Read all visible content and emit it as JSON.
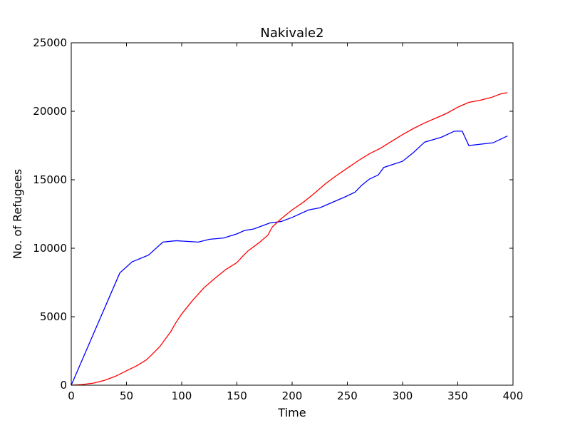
{
  "chart_data": {
    "type": "line",
    "title": "Nakivale2",
    "xlabel": "Time",
    "ylabel": "No. of Refugees",
    "xlim": [
      0,
      400
    ],
    "ylim": [
      0,
      25000
    ],
    "xticks": [
      0,
      50,
      100,
      150,
      200,
      250,
      300,
      350,
      400
    ],
    "yticks": [
      0,
      5000,
      10000,
      15000,
      20000,
      25000
    ],
    "grid": false,
    "legend": null,
    "series": [
      {
        "color": "#0000ff",
        "x": [
          0,
          44,
          55,
          70,
          83,
          95,
          115,
          125,
          138,
          150,
          157,
          165,
          180,
          190,
          200,
          215,
          225,
          235,
          248,
          257,
          263,
          270,
          278,
          283,
          300,
          310,
          320,
          335,
          347,
          354,
          360,
          382,
          395
        ],
        "y": [
          0,
          8200,
          9000,
          9500,
          10450,
          10550,
          10450,
          10650,
          10750,
          11050,
          11300,
          11400,
          11850,
          11950,
          12250,
          12800,
          12950,
          13300,
          13750,
          14100,
          14600,
          15050,
          15350,
          15900,
          16350,
          17000,
          17750,
          18100,
          18550,
          18550,
          17500,
          17700,
          18200
        ]
      },
      {
        "color": "#ff0000",
        "x": [
          0,
          10,
          20,
          30,
          40,
          50,
          60,
          68,
          72,
          80,
          90,
          95,
          100,
          110,
          120,
          130,
          140,
          150,
          155,
          160,
          170,
          178,
          182,
          190,
          200,
          210,
          220,
          230,
          240,
          250,
          260,
          270,
          280,
          290,
          300,
          310,
          320,
          330,
          340,
          350,
          360,
          370,
          380,
          390,
          395
        ],
        "y": [
          0,
          50,
          150,
          350,
          650,
          1050,
          1450,
          1850,
          2150,
          2800,
          3900,
          4600,
          5200,
          6200,
          7100,
          7800,
          8450,
          8950,
          9400,
          9800,
          10400,
          10950,
          11550,
          12150,
          12800,
          13350,
          14000,
          14700,
          15300,
          15850,
          16400,
          16900,
          17300,
          17800,
          18300,
          18750,
          19150,
          19500,
          19850,
          20300,
          20650,
          20800,
          21000,
          21300,
          21350
        ]
      }
    ]
  }
}
